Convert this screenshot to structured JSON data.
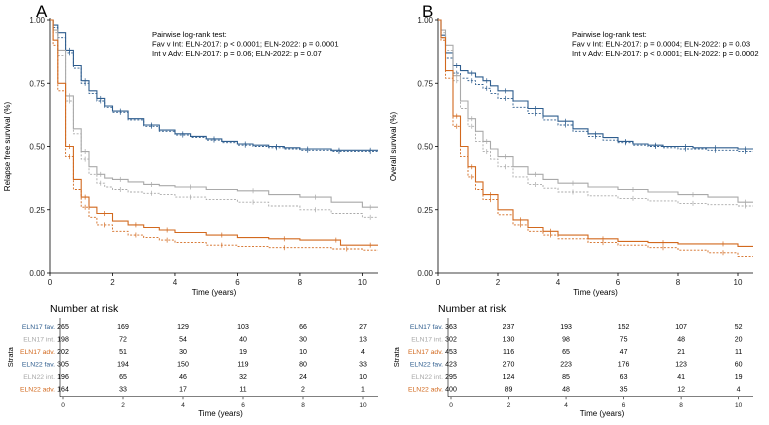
{
  "colors": {
    "fav": "#2e5d8e",
    "int": "#a9a9a9",
    "adv": "#d2691e",
    "axis": "#000000"
  },
  "chart_data": [
    {
      "panel": "A",
      "type": "line",
      "subtype": "kaplan-meier",
      "xlabel": "Time (years)",
      "ylabel": "Relapse free survival (%)",
      "xlim": [
        0,
        10.5
      ],
      "ylim": [
        0,
        1
      ],
      "xticks": [
        "0",
        "2",
        "4",
        "6",
        "8",
        "10"
      ],
      "yticks": [
        "0.00",
        "0.25",
        "0.50",
        "0.75",
        "1.00"
      ],
      "annotation": [
        "Pairwise log-rank test:",
        "Fav v Int: ELN-2017: p < 0.0001; ELN-2022: p = 0.0001",
        "Int v Adv: ELN-2017: p = 0.06; ELN-2022: p = 0.07"
      ],
      "series": [
        {
          "name": "ELN17 fav.",
          "group": "fav",
          "dashed": false,
          "x": [
            0,
            0.1,
            0.25,
            0.5,
            0.75,
            1,
            1.25,
            1.5,
            1.75,
            2,
            2.5,
            3,
            3.5,
            4,
            4.5,
            5,
            5.5,
            6,
            6.5,
            7,
            7.5,
            8,
            8.5,
            9,
            9.5,
            10,
            10.5
          ],
          "y": [
            1,
            0.98,
            0.95,
            0.88,
            0.82,
            0.76,
            0.72,
            0.69,
            0.66,
            0.64,
            0.61,
            0.585,
            0.565,
            0.55,
            0.54,
            0.53,
            0.52,
            0.51,
            0.505,
            0.5,
            0.495,
            0.49,
            0.49,
            0.485,
            0.485,
            0.485,
            0.485
          ]
        },
        {
          "name": "ELN22 fav.",
          "group": "fav",
          "dashed": true,
          "x": [
            0,
            0.1,
            0.25,
            0.5,
            0.75,
            1,
            1.25,
            1.5,
            1.75,
            2,
            2.5,
            3,
            3.5,
            4,
            4.5,
            5,
            5.5,
            6,
            6.5,
            7,
            7.5,
            8,
            8.5,
            9,
            9.5,
            10,
            10.5
          ],
          "y": [
            1,
            0.97,
            0.93,
            0.87,
            0.81,
            0.75,
            0.71,
            0.68,
            0.655,
            0.635,
            0.605,
            0.58,
            0.56,
            0.545,
            0.535,
            0.525,
            0.515,
            0.505,
            0.5,
            0.495,
            0.49,
            0.485,
            0.485,
            0.48,
            0.48,
            0.48,
            0.48
          ]
        },
        {
          "name": "ELN17 int.",
          "group": "int",
          "dashed": false,
          "x": [
            0,
            0.1,
            0.25,
            0.5,
            0.75,
            1,
            1.25,
            1.5,
            1.75,
            2,
            2.5,
            3,
            3.5,
            4,
            5,
            6,
            7,
            8,
            9,
            10,
            10.5
          ],
          "y": [
            1,
            0.96,
            0.88,
            0.7,
            0.57,
            0.48,
            0.42,
            0.39,
            0.375,
            0.37,
            0.36,
            0.35,
            0.345,
            0.34,
            0.33,
            0.325,
            0.31,
            0.3,
            0.28,
            0.26,
            0.26
          ]
        },
        {
          "name": "ELN22 int.",
          "group": "int",
          "dashed": true,
          "x": [
            0,
            0.1,
            0.25,
            0.5,
            0.75,
            1,
            1.25,
            1.5,
            1.75,
            2,
            2.5,
            3,
            3.5,
            4,
            5,
            6,
            7,
            8,
            9,
            10,
            10.5
          ],
          "y": [
            1,
            0.95,
            0.86,
            0.68,
            0.55,
            0.45,
            0.39,
            0.355,
            0.34,
            0.33,
            0.32,
            0.315,
            0.31,
            0.3,
            0.29,
            0.28,
            0.265,
            0.25,
            0.235,
            0.22,
            0.22
          ]
        },
        {
          "name": "ELN17 adv.",
          "group": "adv",
          "dashed": false,
          "x": [
            0,
            0.1,
            0.25,
            0.5,
            0.75,
            1,
            1.25,
            1.5,
            2,
            2.5,
            3,
            3.5,
            4,
            5,
            6,
            7,
            8,
            9,
            9.3,
            10,
            10.5
          ],
          "y": [
            1,
            0.92,
            0.75,
            0.5,
            0.37,
            0.3,
            0.26,
            0.235,
            0.205,
            0.19,
            0.18,
            0.17,
            0.16,
            0.15,
            0.14,
            0.135,
            0.13,
            0.13,
            0.11,
            0.11,
            0.11
          ]
        },
        {
          "name": "ELN22 adv.",
          "group": "adv",
          "dashed": true,
          "x": [
            0,
            0.1,
            0.25,
            0.5,
            0.75,
            1,
            1.25,
            1.5,
            2,
            2.5,
            3,
            3.5,
            4,
            5,
            6,
            7,
            8,
            9,
            10,
            10.5
          ],
          "y": [
            1,
            0.9,
            0.72,
            0.46,
            0.33,
            0.26,
            0.22,
            0.19,
            0.165,
            0.15,
            0.14,
            0.13,
            0.12,
            0.11,
            0.105,
            0.1,
            0.1,
            0.095,
            0.09,
            0.09
          ]
        }
      ],
      "risk_table": {
        "title": "Number at risk",
        "axis_label": "Strata",
        "xlabel": "Time (years)",
        "times": [
          "0",
          "2",
          "4",
          "6",
          "8",
          "10"
        ],
        "rows": [
          {
            "label": "ELN17 fav.",
            "group": "fav",
            "values": [
              "265",
              "169",
              "129",
              "103",
              "66",
              "27"
            ]
          },
          {
            "label": "ELN17 int.",
            "group": "int",
            "values": [
              "198",
              "72",
              "54",
              "40",
              "30",
              "13"
            ]
          },
          {
            "label": "ELN17 adv.",
            "group": "adv",
            "values": [
              "202",
              "51",
              "30",
              "19",
              "10",
              "4"
            ]
          },
          {
            "label": "ELN22 fav.",
            "group": "fav",
            "values": [
              "305",
              "194",
              "150",
              "119",
              "80",
              "33"
            ]
          },
          {
            "label": "ELN22 int.",
            "group": "int",
            "values": [
              "196",
              "65",
              "46",
              "32",
              "24",
              "10"
            ]
          },
          {
            "label": "ELN22 adv.",
            "group": "adv",
            "values": [
              "164",
              "33",
              "17",
              "11",
              "2",
              "1"
            ]
          }
        ]
      }
    },
    {
      "panel": "B",
      "type": "line",
      "subtype": "kaplan-meier",
      "xlabel": "Time (years)",
      "ylabel": "Overall survival (%)",
      "xlim": [
        0,
        10.5
      ],
      "ylim": [
        0,
        1
      ],
      "xticks": [
        "0",
        "2",
        "4",
        "6",
        "8",
        "10"
      ],
      "yticks": [
        "0.00",
        "0.25",
        "0.50",
        "0.75",
        "1.00"
      ],
      "annotation": [
        "Pairwise log-rank test:",
        "Fav v Int: ELN-2017: p = 0.0004; ELN-2022: p = 0.03",
        "Int v Adv: ELN-2017: p < 0.0001;   ELN-2022: p = 0.0002"
      ],
      "series": [
        {
          "name": "ELN17 fav.",
          "group": "fav",
          "dashed": false,
          "x": [
            0,
            0.1,
            0.25,
            0.5,
            0.75,
            1,
            1.25,
            1.5,
            1.75,
            2,
            2.5,
            3,
            3.5,
            4,
            4.5,
            5,
            5.5,
            6,
            6.5,
            7,
            7.5,
            8,
            8.5,
            9,
            9.5,
            10,
            10.5
          ],
          "y": [
            1,
            0.94,
            0.87,
            0.82,
            0.8,
            0.79,
            0.775,
            0.76,
            0.74,
            0.72,
            0.68,
            0.65,
            0.62,
            0.6,
            0.57,
            0.55,
            0.535,
            0.52,
            0.51,
            0.505,
            0.5,
            0.5,
            0.495,
            0.495,
            0.495,
            0.49,
            0.49
          ]
        },
        {
          "name": "ELN22 fav.",
          "group": "fav",
          "dashed": true,
          "x": [
            0,
            0.1,
            0.25,
            0.5,
            0.75,
            1,
            1.25,
            1.5,
            1.75,
            2,
            2.5,
            3,
            3.5,
            4,
            4.5,
            5,
            5.5,
            6,
            6.5,
            7,
            7.5,
            8,
            8.5,
            9,
            9.5,
            10,
            10.5
          ],
          "y": [
            1,
            0.93,
            0.85,
            0.79,
            0.77,
            0.76,
            0.745,
            0.73,
            0.71,
            0.69,
            0.655,
            0.63,
            0.605,
            0.585,
            0.56,
            0.54,
            0.525,
            0.515,
            0.505,
            0.5,
            0.495,
            0.49,
            0.49,
            0.485,
            0.485,
            0.48,
            0.48
          ]
        },
        {
          "name": "ELN17 int.",
          "group": "int",
          "dashed": false,
          "x": [
            0,
            0.1,
            0.25,
            0.5,
            0.75,
            1,
            1.25,
            1.5,
            1.75,
            2,
            2.5,
            3,
            3.5,
            4,
            5,
            6,
            7,
            8,
            9,
            10,
            10.5
          ],
          "y": [
            1,
            0.96,
            0.9,
            0.78,
            0.68,
            0.61,
            0.56,
            0.52,
            0.49,
            0.46,
            0.42,
            0.39,
            0.37,
            0.355,
            0.34,
            0.33,
            0.32,
            0.31,
            0.3,
            0.28,
            0.28
          ]
        },
        {
          "name": "ELN22 int.",
          "group": "int",
          "dashed": true,
          "x": [
            0,
            0.1,
            0.25,
            0.5,
            0.75,
            1,
            1.25,
            1.5,
            1.75,
            2,
            2.5,
            3,
            3.5,
            4,
            5,
            6,
            7,
            8,
            9,
            10,
            10.5
          ],
          "y": [
            1,
            0.95,
            0.88,
            0.76,
            0.65,
            0.58,
            0.52,
            0.48,
            0.45,
            0.42,
            0.38,
            0.35,
            0.335,
            0.32,
            0.305,
            0.295,
            0.285,
            0.275,
            0.27,
            0.265,
            0.265
          ]
        },
        {
          "name": "ELN17 adv.",
          "group": "adv",
          "dashed": false,
          "x": [
            0,
            0.1,
            0.25,
            0.5,
            0.75,
            1,
            1.25,
            1.5,
            2,
            2.5,
            3,
            3.5,
            4,
            5,
            6,
            7,
            8,
            9,
            10,
            10.5
          ],
          "y": [
            1,
            0.93,
            0.8,
            0.62,
            0.5,
            0.42,
            0.36,
            0.31,
            0.25,
            0.21,
            0.18,
            0.165,
            0.15,
            0.135,
            0.125,
            0.12,
            0.115,
            0.115,
            0.105,
            0.105
          ]
        },
        {
          "name": "ELN22 adv.",
          "group": "adv",
          "dashed": true,
          "x": [
            0,
            0.1,
            0.25,
            0.5,
            0.75,
            1,
            1.25,
            1.5,
            2,
            2.5,
            3,
            3.5,
            4,
            5,
            6,
            7,
            8,
            9,
            10,
            10.5
          ],
          "y": [
            1,
            0.92,
            0.77,
            0.58,
            0.46,
            0.38,
            0.33,
            0.29,
            0.23,
            0.19,
            0.165,
            0.15,
            0.135,
            0.12,
            0.11,
            0.1,
            0.09,
            0.08,
            0.065,
            0.065
          ]
        }
      ],
      "risk_table": {
        "title": "Number at risk",
        "axis_label": "Strata",
        "xlabel": "Time (years)",
        "times": [
          "0",
          "2",
          "4",
          "6",
          "8",
          "10"
        ],
        "rows": [
          {
            "label": "ELN17 fav.",
            "group": "fav",
            "values": [
              "363",
              "237",
              "193",
              "152",
              "107",
              "52"
            ]
          },
          {
            "label": "ELN17 int.",
            "group": "int",
            "values": [
              "302",
              "130",
              "98",
              "75",
              "48",
              "20"
            ]
          },
          {
            "label": "ELN17 adv.",
            "group": "adv",
            "values": [
              "453",
              "116",
              "65",
              "47",
              "21",
              "11"
            ]
          },
          {
            "label": "ELN22 fav.",
            "group": "fav",
            "values": [
              "423",
              "270",
              "223",
              "176",
              "123",
              "60"
            ]
          },
          {
            "label": "ELN22 int.",
            "group": "int",
            "values": [
              "295",
              "124",
              "85",
              "63",
              "41",
              "19"
            ]
          },
          {
            "label": "ELN22 adv.",
            "group": "adv",
            "values": [
              "400",
              "89",
              "48",
              "35",
              "12",
              "4"
            ]
          }
        ]
      }
    }
  ]
}
